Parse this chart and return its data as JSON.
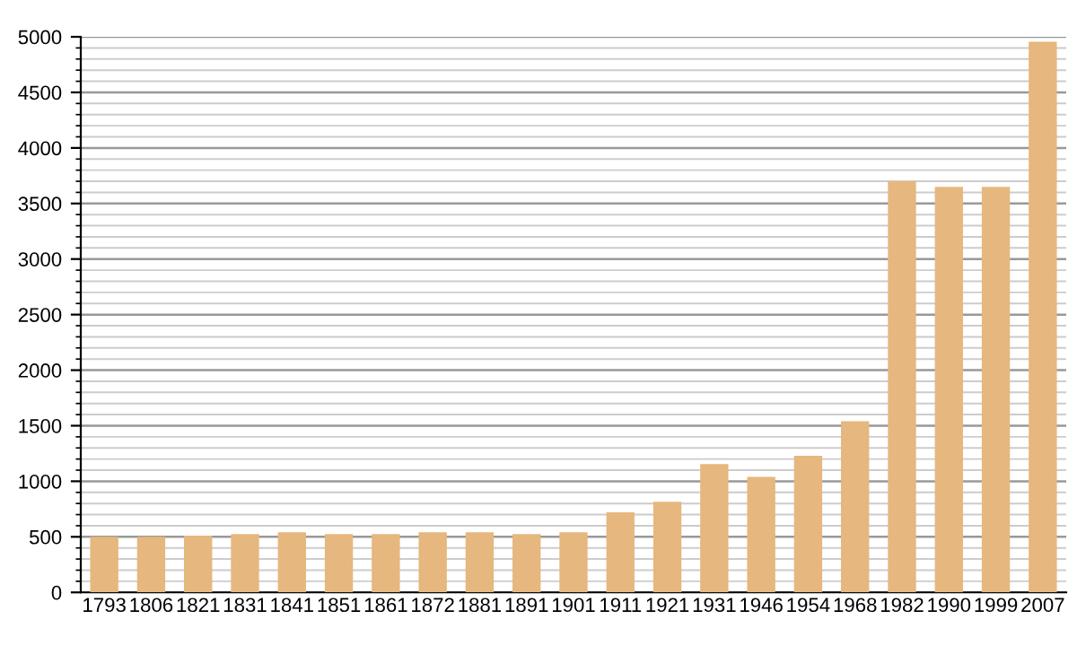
{
  "chart_data": {
    "type": "bar",
    "categories": [
      "1793",
      "1806",
      "1821",
      "1831",
      "1841",
      "1851",
      "1861",
      "1872",
      "1881",
      "1891",
      "1901",
      "1911",
      "1921",
      "1931",
      "1946",
      "1954",
      "1968",
      "1982",
      "1990",
      "1999",
      "2007"
    ],
    "values": [
      500,
      500,
      510,
      525,
      540,
      525,
      525,
      540,
      540,
      525,
      540,
      720,
      815,
      1155,
      1040,
      1230,
      1540,
      3700,
      3650,
      3650,
      4955
    ],
    "color": "#e6b77e",
    "ylim": [
      0,
      5000
    ],
    "yticks": [
      0,
      500,
      1000,
      1500,
      2000,
      2500,
      3000,
      3500,
      4000,
      4500,
      5000
    ],
    "grid": "y"
  }
}
